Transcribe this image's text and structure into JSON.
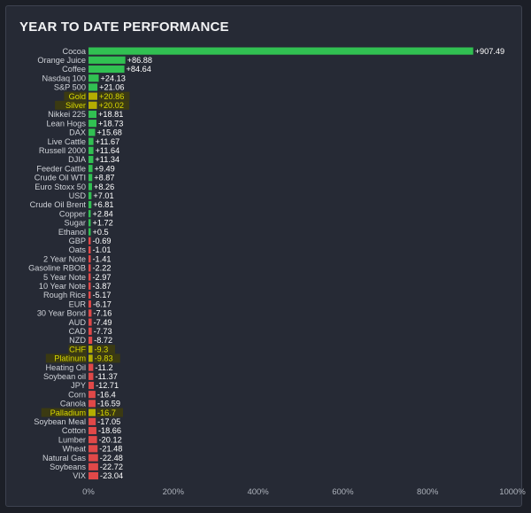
{
  "chart_data": {
    "type": "bar",
    "orientation": "horizontal",
    "title": "YEAR TO DATE PERFORMANCE",
    "xlim": [
      0,
      1000
    ],
    "x_ticks": [
      "0%",
      "200%",
      "400%",
      "600%",
      "800%",
      "1000%"
    ],
    "colors": {
      "positive": "#31c052",
      "negative": "#e04848",
      "highlight": "#d8d800",
      "highlight_bar": "#b4ad00"
    },
    "categories": [
      "Cocoa",
      "Orange Juice",
      "Coffee",
      "Nasdaq 100",
      "S&P 500",
      "Gold",
      "Silver",
      "Nikkei 225",
      "Lean Hogs",
      "DAX",
      "Live Cattle",
      "Russell 2000",
      "DJIA",
      "Feeder Cattle",
      "Crude Oil WTI",
      "Euro Stoxx 50",
      "USD",
      "Crude Oil Brent",
      "Copper",
      "Sugar",
      "Ethanol",
      "GBP",
      "Oats",
      "2 Year Note",
      "Gasoline RBOB",
      "5 Year Note",
      "10 Year Note",
      "Rough Rice",
      "EUR",
      "30 Year Bond",
      "AUD",
      "CAD",
      "NZD",
      "CHF",
      "Platinum",
      "Heating Oil",
      "Soybean oil",
      "JPY",
      "Corn",
      "Canola",
      "Palladium",
      "Soybean Meal",
      "Cotton",
      "Lumber",
      "Wheat",
      "Natural Gas",
      "Soybeans",
      "VIX"
    ],
    "values": [
      907.49,
      86.88,
      84.64,
      24.13,
      21.06,
      20.86,
      20.02,
      18.81,
      18.73,
      15.68,
      11.67,
      11.64,
      11.34,
      9.49,
      8.87,
      8.26,
      7.01,
      6.81,
      2.84,
      1.72,
      0.5,
      -0.69,
      -1.01,
      -1.41,
      -2.22,
      -2.97,
      -3.87,
      -5.17,
      -6.17,
      -7.16,
      -7.49,
      -7.73,
      -8.72,
      -9.3,
      -9.83,
      -11.2,
      -11.37,
      -12.71,
      -16.4,
      -16.59,
      -16.7,
      -17.05,
      -18.66,
      -20.12,
      -21.48,
      -22.48,
      -22.72,
      -23.04
    ],
    "value_labels": [
      "+907.49",
      "+86.88",
      "+84.64",
      "+24.13",
      "+21.06",
      "+20.86",
      "+20.02",
      "+18.81",
      "+18.73",
      "+15.68",
      "+11.67",
      "+11.64",
      "+11.34",
      "+9.49",
      "+8.87",
      "+8.26",
      "+7.01",
      "+6.81",
      "+2.84",
      "+1.72",
      "+0.5",
      "-0.69",
      "-1.01",
      "-1.41",
      "-2.22",
      "-2.97",
      "-3.87",
      "-5.17",
      "-6.17",
      "-7.16",
      "-7.49",
      "-7.73",
      "-8.72",
      "-9.3",
      "-9.83",
      "-11.2",
      "-11.37",
      "-12.71",
      "-16.4",
      "-16.59",
      "-16.7",
      "-17.05",
      "-18.66",
      "-20.12",
      "-21.48",
      "-22.48",
      "-22.72",
      "-23.04"
    ],
    "highlighted": [
      "Gold",
      "Silver",
      "CHF",
      "Platinum",
      "Palladium"
    ],
    "grid": false
  }
}
